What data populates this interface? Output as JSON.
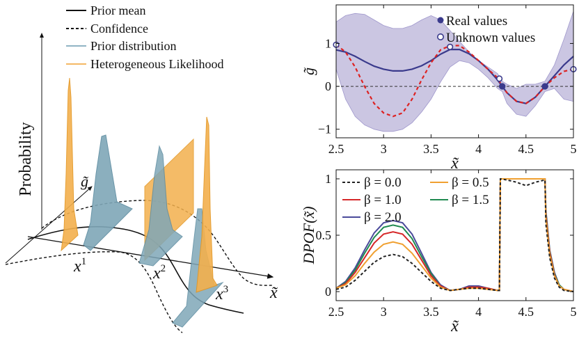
{
  "left_panel": {
    "legend": [
      {
        "label": "Prior mean",
        "style": "solid",
        "color": "#222222"
      },
      {
        "label": "Confidence",
        "style": "dashed",
        "color": "#222222"
      },
      {
        "label": "Prior distribution",
        "style": "solid",
        "color": "#6c9bb0"
      },
      {
        "label": "Heterogeneous Likelihood",
        "style": "solid",
        "color": "#f0a030"
      }
    ],
    "ylabel": "Probability",
    "g_axis_label": "g̃",
    "x_axis_label": "x̃",
    "point_labels": [
      "x",
      "x",
      "x"
    ],
    "point_superscripts": [
      "1",
      "2",
      "3"
    ],
    "colors": {
      "prior": "#7fa7b8",
      "likelihood": "#f3b04d"
    }
  },
  "chart_data": [
    {
      "type": "line",
      "ylabel": "g̃",
      "xlabel": "x̃",
      "xlim": [
        2.5,
        5
      ],
      "ylim": [
        -1.2,
        1.9
      ],
      "xticks": [
        "2.5",
        "3",
        "3.5",
        "4",
        "4.5",
        "5"
      ],
      "xtick_values": [
        2.5,
        3,
        3.5,
        4,
        4.5,
        5
      ],
      "yticks": [
        "−1",
        "0",
        "1"
      ],
      "ytick_values": [
        -1,
        0,
        1
      ],
      "legend_position": "top-right",
      "legend": [
        {
          "label": "Real values",
          "marker": "filled-circle",
          "color": "#3a3a8c"
        },
        {
          "label": "Unknown values",
          "marker": "open-circle",
          "color": "#3a3a8c"
        }
      ],
      "series": [
        {
          "style": "solid",
          "color": "#3a3a8c",
          "x": [
            2.5,
            2.6,
            2.7,
            2.8,
            2.9,
            3.0,
            3.1,
            3.2,
            3.3,
            3.4,
            3.5,
            3.6,
            3.7,
            3.8,
            3.9,
            4.0,
            4.1,
            4.2,
            4.25,
            4.3,
            4.4,
            4.5,
            4.6,
            4.7,
            4.8,
            4.9,
            5.0
          ],
          "y": [
            0.85,
            0.8,
            0.7,
            0.58,
            0.47,
            0.4,
            0.36,
            0.36,
            0.4,
            0.48,
            0.6,
            0.75,
            0.86,
            0.86,
            0.76,
            0.6,
            0.4,
            0.15,
            0.0,
            -0.15,
            -0.35,
            -0.4,
            -0.25,
            0.0,
            0.25,
            0.5,
            0.7
          ]
        },
        {
          "style": "dashed",
          "color": "#dd2222",
          "x": [
            2.5,
            2.6,
            2.7,
            2.8,
            2.9,
            3.0,
            3.1,
            3.2,
            3.3,
            3.4,
            3.5,
            3.6,
            3.7,
            3.8,
            3.9,
            4.0,
            4.1,
            4.2,
            4.25,
            4.3,
            4.4,
            4.5,
            4.6,
            4.7,
            4.8,
            4.9,
            5.0
          ],
          "y": [
            0.97,
            0.8,
            0.45,
            0.0,
            -0.4,
            -0.62,
            -0.7,
            -0.62,
            -0.3,
            0.15,
            0.55,
            0.85,
            0.95,
            0.95,
            0.8,
            0.6,
            0.4,
            0.2,
            0.0,
            -0.15,
            -0.35,
            -0.4,
            -0.25,
            0.0,
            0.2,
            0.35,
            0.4
          ]
        }
      ],
      "band": {
        "color": "#b9b3d8",
        "x": [
          2.5,
          2.6,
          2.7,
          2.8,
          2.9,
          3.0,
          3.1,
          3.2,
          3.3,
          3.4,
          3.5,
          3.6,
          3.7,
          3.8,
          3.9,
          4.0,
          4.1,
          4.2,
          4.25,
          4.3,
          4.4,
          4.5,
          4.6,
          4.7,
          4.8,
          4.9,
          5.0
        ],
        "upper": [
          1.5,
          1.65,
          1.7,
          1.68,
          1.55,
          1.42,
          1.35,
          1.35,
          1.42,
          1.55,
          1.65,
          1.55,
          1.3,
          1.05,
          0.8,
          0.6,
          0.45,
          0.3,
          0.12,
          0.05,
          -0.05,
          0.05,
          0.05,
          0.12,
          0.5,
          1.1,
          1.75
        ],
        "lower": [
          0.4,
          -0.3,
          -0.7,
          -0.9,
          -1.0,
          -1.05,
          -1.05,
          -1.0,
          -0.85,
          -0.6,
          -0.3,
          0.1,
          0.45,
          0.6,
          0.55,
          0.4,
          0.2,
          -0.05,
          -0.12,
          -0.4,
          -0.65,
          -0.7,
          -0.45,
          -0.12,
          -0.05,
          -0.3,
          -0.35
        ]
      },
      "points_real": [
        {
          "x": 4.25,
          "y": 0.0
        },
        {
          "x": 4.7,
          "y": 0.0
        }
      ],
      "points_unknown": [
        {
          "x": 2.5,
          "y": 0.97
        },
        {
          "x": 3.7,
          "y": 0.92
        },
        {
          "x": 4.22,
          "y": 0.18
        },
        {
          "x": 5.0,
          "y": 0.4
        }
      ]
    },
    {
      "type": "line",
      "ylabel": "DPOF(x̃)",
      "xlabel": "x̃",
      "xlim": [
        2.5,
        5
      ],
      "ylim": [
        -0.08,
        1.08
      ],
      "xticks": [
        "2.5",
        "3",
        "3.5",
        "4",
        "4.5",
        "5"
      ],
      "xtick_values": [
        2.5,
        3,
        3.5,
        4,
        4.5,
        5
      ],
      "yticks": [
        "0",
        "0.5",
        "1"
      ],
      "ytick_values": [
        0,
        0.5,
        1
      ],
      "legend_position": "top-left",
      "series": [
        {
          "name": "β = 0.0",
          "style": "dashed",
          "color": "#222222",
          "x": [
            2.5,
            2.6,
            2.7,
            2.8,
            2.9,
            3.0,
            3.1,
            3.2,
            3.3,
            3.4,
            3.5,
            3.6,
            3.7,
            3.8,
            3.9,
            4.0,
            4.1,
            4.2,
            4.22,
            4.23,
            4.3,
            4.4,
            4.5,
            4.6,
            4.7,
            4.71,
            4.75,
            4.8,
            4.85,
            4.9,
            5.0
          ],
          "y": [
            0.02,
            0.04,
            0.1,
            0.18,
            0.26,
            0.31,
            0.33,
            0.31,
            0.25,
            0.17,
            0.09,
            0.03,
            0.01,
            0.02,
            0.03,
            0.03,
            0.02,
            0.01,
            0.01,
            1.0,
            0.99,
            0.97,
            0.94,
            0.97,
            0.99,
            0.6,
            0.3,
            0.12,
            0.04,
            0.01,
            0.0
          ]
        },
        {
          "name": "β = 0.5",
          "style": "solid",
          "color": "#f0a030",
          "x": [
            2.5,
            2.6,
            2.7,
            2.8,
            2.9,
            3.0,
            3.1,
            3.2,
            3.3,
            3.4,
            3.5,
            3.6,
            3.7,
            3.8,
            3.9,
            4.0,
            4.1,
            4.2,
            4.22,
            4.23,
            4.3,
            4.4,
            4.5,
            4.6,
            4.7,
            4.71,
            4.75,
            4.8,
            4.85,
            4.9,
            5.0
          ],
          "y": [
            0.03,
            0.06,
            0.14,
            0.25,
            0.35,
            0.42,
            0.44,
            0.42,
            0.34,
            0.23,
            0.12,
            0.04,
            0.01,
            0.02,
            0.03,
            0.03,
            0.02,
            0.01,
            0.01,
            1.0,
            1.0,
            1.0,
            1.0,
            1.0,
            1.0,
            0.65,
            0.33,
            0.14,
            0.05,
            0.02,
            0.0
          ]
        },
        {
          "name": "β = 1.0",
          "style": "solid",
          "color": "#d62728",
          "x": [
            2.5,
            2.6,
            2.7,
            2.8,
            2.9,
            3.0,
            3.1,
            3.2,
            3.3,
            3.4,
            3.5,
            3.6,
            3.7,
            3.8,
            3.9,
            4.0,
            4.1,
            4.2,
            4.22,
            4.23,
            4.3,
            4.4,
            4.5,
            4.6,
            4.7,
            4.71,
            4.75,
            4.8,
            4.85,
            4.9,
            5.0
          ],
          "y": [
            0.03,
            0.07,
            0.17,
            0.3,
            0.43,
            0.51,
            0.53,
            0.51,
            0.42,
            0.28,
            0.14,
            0.05,
            0.01,
            0.02,
            0.04,
            0.04,
            0.03,
            0.01,
            0.01,
            1.0,
            1.0,
            1.0,
            1.0,
            1.0,
            1.0,
            0.68,
            0.35,
            0.15,
            0.05,
            0.02,
            0.0
          ]
        },
        {
          "name": "β = 1.5",
          "style": "solid",
          "color": "#1f8a50",
          "x": [
            2.5,
            2.6,
            2.7,
            2.8,
            2.9,
            3.0,
            3.1,
            3.2,
            3.3,
            3.4,
            3.5,
            3.6,
            3.7,
            3.8,
            3.9,
            4.0,
            4.1,
            4.2,
            4.22,
            4.23,
            4.3,
            4.4,
            4.5,
            4.6,
            4.7,
            4.71,
            4.75,
            4.8,
            4.85,
            4.9,
            5.0
          ],
          "y": [
            0.03,
            0.08,
            0.19,
            0.34,
            0.48,
            0.57,
            0.59,
            0.57,
            0.47,
            0.31,
            0.16,
            0.05,
            0.01,
            0.02,
            0.04,
            0.04,
            0.03,
            0.01,
            0.01,
            1.0,
            1.0,
            1.0,
            1.0,
            1.0,
            1.0,
            0.7,
            0.36,
            0.16,
            0.06,
            0.02,
            0.0
          ]
        },
        {
          "name": "β = 2.0",
          "style": "solid",
          "color": "#4a4a9a",
          "x": [
            2.5,
            2.6,
            2.7,
            2.8,
            2.9,
            3.0,
            3.1,
            3.2,
            3.3,
            3.4,
            3.5,
            3.6,
            3.7,
            3.8,
            3.9,
            4.0,
            4.1,
            4.2,
            4.22,
            4.23,
            4.3,
            4.4,
            4.5,
            4.6,
            4.7,
            4.71,
            4.75,
            4.8,
            4.85,
            4.9,
            5.0
          ],
          "y": [
            0.03,
            0.09,
            0.21,
            0.37,
            0.52,
            0.61,
            0.63,
            0.61,
            0.51,
            0.34,
            0.17,
            0.06,
            0.01,
            0.02,
            0.05,
            0.05,
            0.03,
            0.01,
            0.01,
            1.0,
            1.0,
            1.0,
            1.0,
            1.0,
            1.0,
            0.72,
            0.37,
            0.17,
            0.06,
            0.02,
            0.0
          ]
        }
      ]
    }
  ]
}
